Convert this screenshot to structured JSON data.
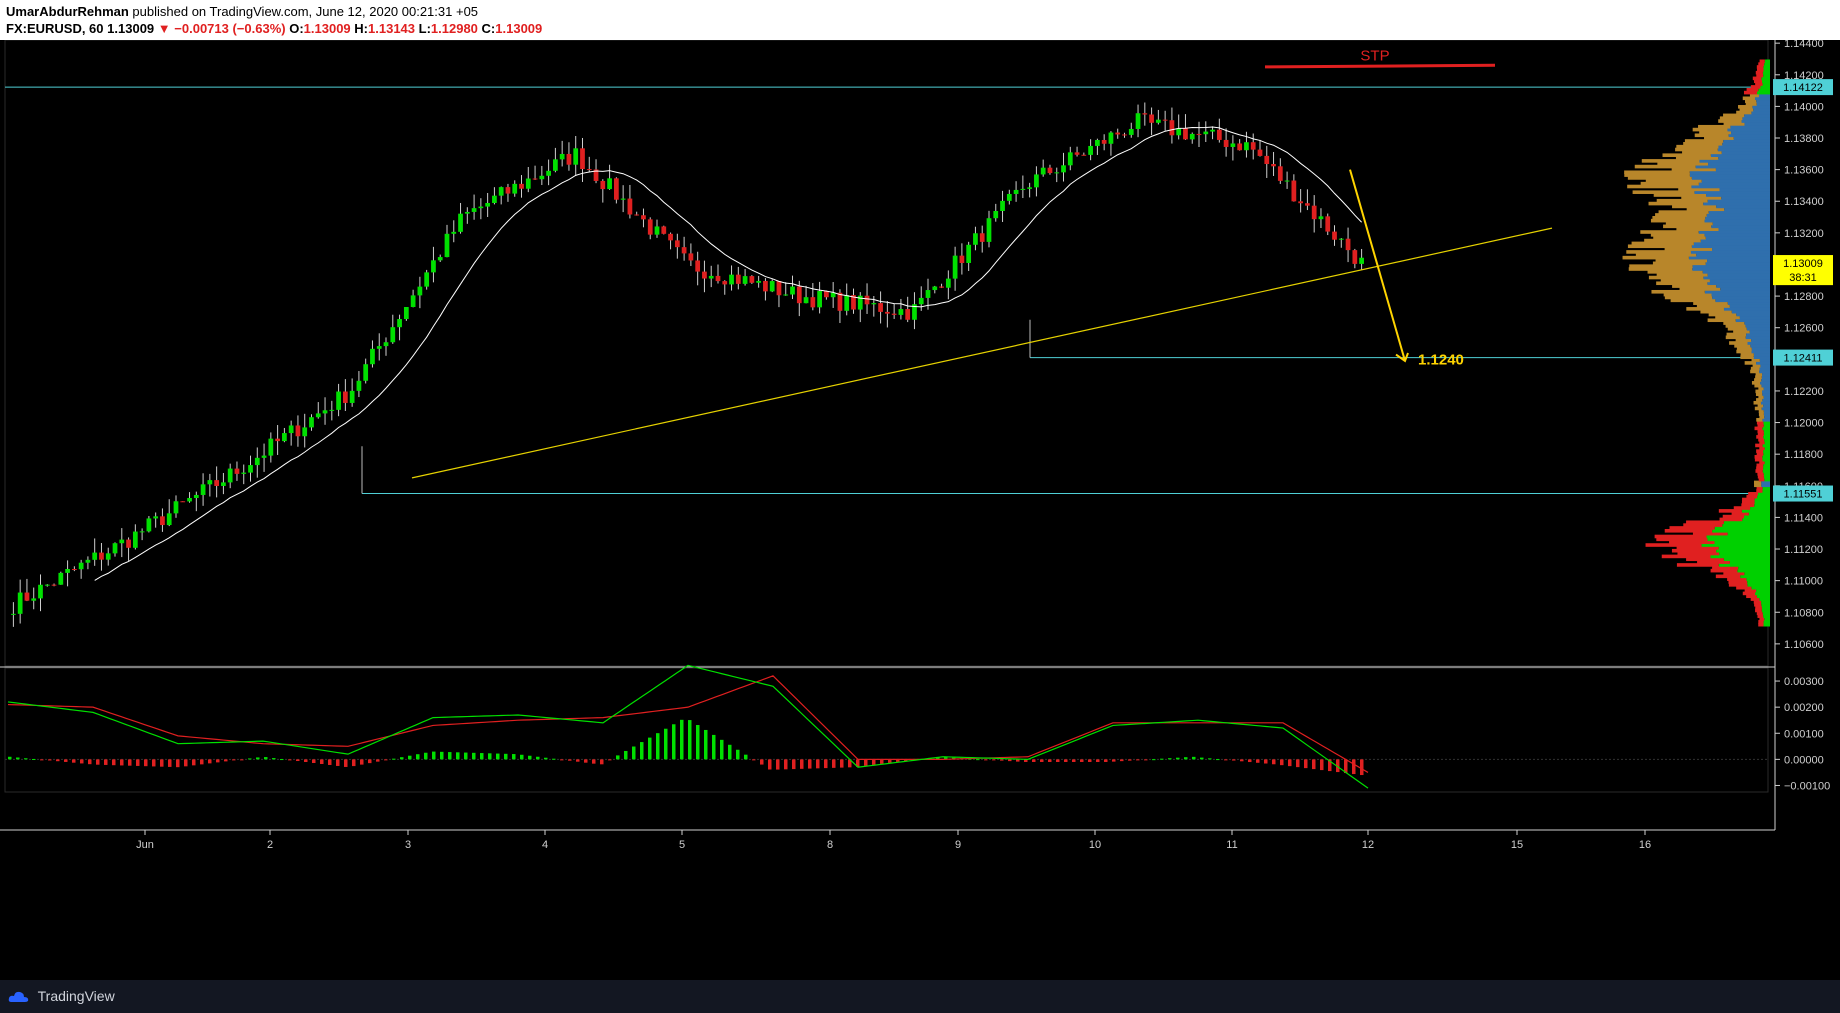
{
  "header": {
    "author": "UmarAbdurRehman",
    "published": "published on TradingView.com, June 12, 2020 00:21:31 +05",
    "symbol": "FX:EURUSD, 60",
    "last": "1.13009",
    "change": "−0.00713 (−0.63%)",
    "o_label": "O:",
    "o": "1.13009",
    "h_label": "H:",
    "h": "1.13143",
    "l_label": "L:",
    "l": "1.12980",
    "c_label": "C:",
    "c": "1.13009"
  },
  "footer": {
    "brand": "TradingView"
  },
  "colors": {
    "up": "#00e000",
    "down": "#e02020",
    "ma": "#ffffff",
    "trend": "#e6d200",
    "level": "#4fd0d6",
    "stp": "#e02020",
    "target": "#ffd400",
    "vp_value": "#2f6fad",
    "vp_outer": "#b8862a",
    "macd": "#00e000",
    "signal": "#e02020",
    "hist_up": "#00e000",
    "hist_down": "#e02020",
    "axis_text": "#d0d0d0"
  },
  "chart_data": [
    {
      "type": "candlestick",
      "title": "",
      "ylim": [
        1.1046,
        1.1442
      ],
      "y_ticks": [
        "1.14400",
        "1.14200",
        "1.14000",
        "1.13800",
        "1.13600",
        "1.13400",
        "1.13200",
        "1.13000",
        "1.12800",
        "1.12600",
        "1.12400",
        "1.12200",
        "1.12000",
        "1.11800",
        "1.11600",
        "1.11400",
        "1.11200",
        "1.11000",
        "1.10800",
        "1.10600"
      ],
      "x_ticks": [
        "Jun",
        "2",
        "3",
        "4",
        "5",
        "8",
        "9",
        "10",
        "11",
        "12",
        "15",
        "16"
      ],
      "price_labels": [
        {
          "text": "1.14122",
          "value": 1.14122,
          "color": "#4fd0d6"
        },
        {
          "text": "1.13009",
          "value": 1.13009,
          "color": "#ffff00"
        },
        {
          "text": "38:31",
          "value": 1.1292,
          "color": "#ffff00"
        },
        {
          "text": "1.12411",
          "value": 1.12411,
          "color": "#4fd0d6"
        },
        {
          "text": "1.11551",
          "value": 1.11551,
          "color": "#4fd0d6"
        }
      ],
      "annotations": [
        {
          "text": "STP",
          "value": 1.1427,
          "color": "#e02020"
        },
        {
          "text": "1.1240",
          "value": 1.124,
          "color": "#ffd400"
        }
      ],
      "levels": [
        1.14122,
        1.12411,
        1.11551
      ],
      "trendline": {
        "from": [
          "3",
          1.1165
        ],
        "to": [
          "12+",
          1.1323
        ]
      },
      "key_points": [
        {
          "x": "Jun 1",
          "close": 1.1085
        },
        {
          "x": "Jun 2",
          "close": 1.1125
        },
        {
          "x": "Jun 3",
          "close": 1.117
        },
        {
          "x": "Jun 4",
          "close": 1.122
        },
        {
          "x": "Jun 4 late",
          "close": 1.133
        },
        {
          "x": "Jun 5",
          "close": 1.137
        },
        {
          "x": "Jun 8",
          "close": 1.13
        },
        {
          "x": "Jun 9",
          "close": 1.128
        },
        {
          "x": "Jun 9 late",
          "close": 1.127
        },
        {
          "x": "Jun 10",
          "close": 1.135
        },
        {
          "x": "Jun 11",
          "close": 1.139
        },
        {
          "x": "Jun 11 late",
          "close": 1.1375
        },
        {
          "x": "Jun 12",
          "close": 1.1301
        }
      ]
    },
    {
      "type": "line",
      "title": "",
      "ylim": [
        -0.00125,
        0.0035
      ],
      "y_ticks": [
        "0.00300",
        "0.00200",
        "0.00100",
        "0.00000",
        "−0.00100"
      ],
      "series": [
        {
          "values": [
            0.0022,
            0.0018,
            0.0006,
            0.0007,
            0.0002,
            0.0016,
            0.0017,
            0.0014,
            0.0036,
            0.0028,
            -0.0003,
            0.0001,
            0.0,
            0.0013,
            0.0015,
            0.0012,
            -0.0011
          ]
        },
        {
          "values": [
            0.0021,
            0.002,
            0.0009,
            0.0006,
            0.0005,
            0.0013,
            0.0015,
            0.0016,
            0.002,
            0.0032,
            0.0,
            0.0,
            0.0001,
            0.0014,
            0.0014,
            0.0014,
            -0.0005
          ]
        }
      ]
    }
  ]
}
